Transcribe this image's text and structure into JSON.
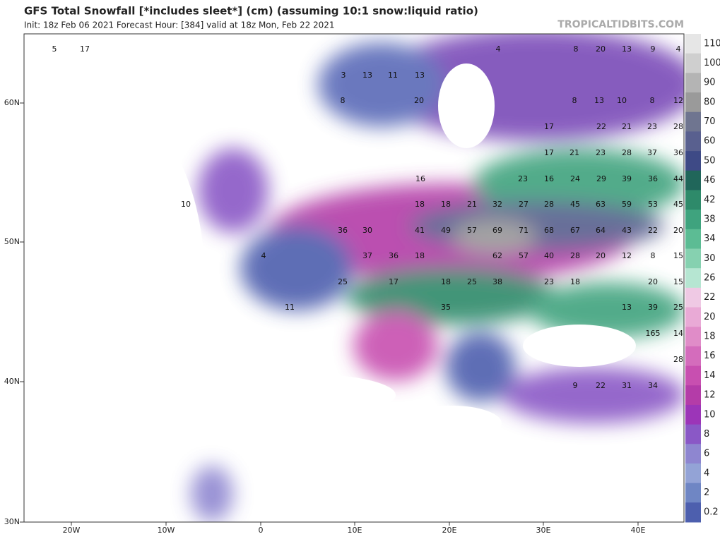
{
  "header": {
    "title": "GFS Total Snowfall [*includes sleet*] (cm) (assuming 10:1 snow:liquid ratio)",
    "subtitle": "Init: 18z Feb 06 2021   Forecast Hour: [384]   valid at 18z Mon, Feb 22 2021",
    "site": "TROPICALTIDBITS.COM"
  },
  "axes": {
    "lat_labels": [
      "60N",
      "50N",
      "40N",
      "30N"
    ],
    "lon_labels": [
      "20W",
      "10W",
      "0",
      "10E",
      "20E",
      "30E",
      "40E"
    ]
  },
  "colorbar": {
    "labels": [
      "110",
      "100",
      "90",
      "80",
      "70",
      "60",
      "50",
      "46",
      "42",
      "38",
      "34",
      "30",
      "26",
      "22",
      "20",
      "18",
      "16",
      "14",
      "12",
      "10",
      "8",
      "6",
      "4",
      "2",
      "0.2"
    ],
    "colors": [
      "#e6e6e6",
      "#cfcfcf",
      "#b4b4b4",
      "#9a9a9a",
      "#6f7590",
      "#59608f",
      "#3e4a86",
      "#20665a",
      "#2e8a6a",
      "#3fa37e",
      "#5cbc94",
      "#86d1b0",
      "#b6e6d2",
      "#efc9e4",
      "#e9aad6",
      "#e08cc8",
      "#d46cbc",
      "#c84fb0",
      "#b43ca8",
      "#9c35b8",
      "#8a58c6",
      "#8e86d0",
      "#93a3d6",
      "#6f86c4",
      "#4d5fae"
    ]
  },
  "map": {
    "labels": [
      "5",
      "17",
      "3",
      "13",
      "11",
      "13",
      "4",
      "8",
      "20",
      "13",
      "9",
      "4",
      "8",
      "20",
      "8",
      "13",
      "10",
      "8",
      "12",
      "17",
      "22",
      "21",
      "23",
      "28",
      "17",
      "21",
      "23",
      "28",
      "37",
      "36",
      "10",
      "16",
      "23",
      "16",
      "24",
      "29",
      "39",
      "36",
      "44",
      "18",
      "18",
      "21",
      "32",
      "27",
      "28",
      "45",
      "63",
      "59",
      "53",
      "45",
      "36",
      "30",
      "41",
      "49",
      "57",
      "69",
      "71",
      "68",
      "67",
      "64",
      "43",
      "22",
      "20",
      "4",
      "37",
      "36",
      "18",
      "62",
      "57",
      "40",
      "28",
      "20",
      "12",
      "8",
      "15",
      "25",
      "17",
      "18",
      "25",
      "38",
      "23",
      "18",
      "20",
      "15",
      "11",
      "35",
      "13",
      "39",
      "25",
      "165",
      "14",
      "28",
      "9",
      "22",
      "31",
      "34"
    ]
  }
}
